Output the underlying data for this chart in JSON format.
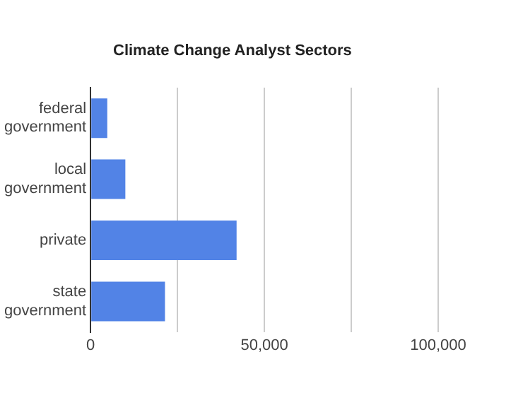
{
  "chart_data": {
    "type": "bar",
    "title": "Climate Change Analyst Sectors",
    "orientation": "horizontal",
    "categories": [
      "federal\ngovernment",
      "local\ngovernment",
      "private",
      "state\ngovernment"
    ],
    "values": [
      4800,
      10000,
      42000,
      21400
    ],
    "color": "#5283e6",
    "xlim": [
      0,
      100000
    ],
    "xticks": [
      0,
      {
        "value": 25000,
        "label": null
      },
      {
        "value": 50000,
        "label": "50,000"
      },
      {
        "value": 75000,
        "label": null
      },
      {
        "value": 100000,
        "label": "100,000"
      }
    ],
    "grid": "x"
  }
}
